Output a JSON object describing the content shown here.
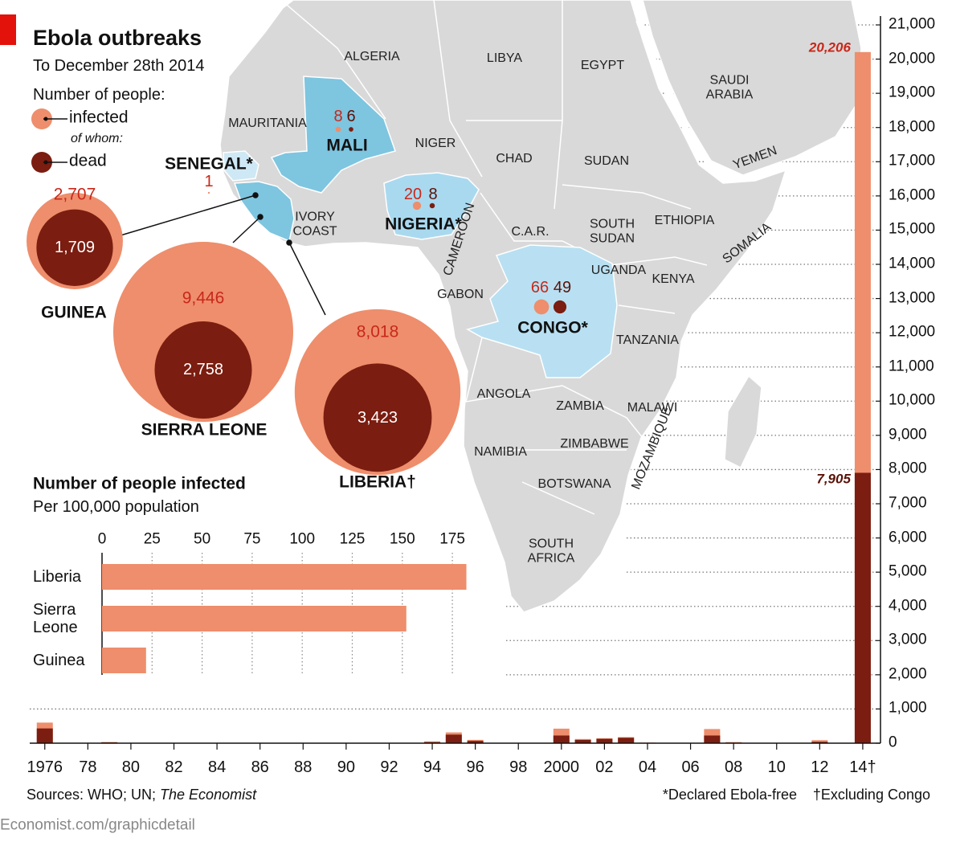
{
  "chart_data": [
    {
      "type": "bubble-map",
      "title": "Ebola outbreaks",
      "subtitle": "To December 28th 2014",
      "legend_title": "Number of people:",
      "legend_note": "of whom:",
      "map_labels": [
        "ALGERIA",
        "LIBYA",
        "EGYPT",
        "SAUDI ARABIA",
        "MAURITANIA",
        "NIGER",
        "CHAD",
        "SUDAN",
        "YEMEN",
        "IVORY COAST",
        "C.A.R.",
        "SOUTH SUDAN",
        "ETHIOPIA",
        "SOMALIA",
        "CAMEROON",
        "UGANDA",
        "KENYA",
        "GABON",
        "TANZANIA",
        "ANGOLA",
        "ZAMBIA",
        "MALAWI",
        "MOZAMBIQUE",
        "ZIMBABWE",
        "NAMIBIA",
        "BOTSWANA",
        "SOUTH AFRICA"
      ],
      "categories": [
        "GUINEA",
        "SIERRA LEONE",
        "LIBERIA†",
        "MALI",
        "SENEGAL*",
        "NIGERIA*",
        "CONGO*"
      ],
      "series": [
        {
          "name": "infected",
          "color": "#ee8e6c",
          "values": [
            2707,
            9446,
            8018,
            8,
            1,
            20,
            66
          ],
          "value_labels": [
            "2,707",
            "9,446",
            "8,018",
            null,
            null,
            null,
            null
          ]
        },
        {
          "name": "dead",
          "color": "#7b1d10",
          "values": [
            1709,
            2758,
            3423,
            6,
            null,
            8,
            49
          ],
          "value_labels": [
            "1,709",
            "2,758",
            "3,423",
            null,
            null,
            null,
            null
          ]
        }
      ]
    },
    {
      "type": "hbar",
      "title": "Number of people infected",
      "subtitle": "Per 100,000 population",
      "categories": [
        "Liberia",
        "Sierra Leone",
        "Guinea"
      ],
      "values": [
        182,
        152,
        22
      ],
      "color": "#ee8e6c",
      "xlim": [
        0,
        185
      ],
      "xticks": [
        0,
        25,
        50,
        75,
        100,
        125,
        150,
        175
      ],
      "grid": true
    },
    {
      "type": "bar",
      "x": [
        1976,
        1977,
        1979,
        1994,
        1995,
        1996,
        2000,
        2001,
        2002,
        2003,
        2004,
        2005,
        2007,
        2008,
        2012,
        2014
      ],
      "series": [
        {
          "color": "#ee8e6c",
          "values": [
            602,
            1,
            34,
            52,
            315,
            97,
            425,
            122,
            143,
            178,
            17,
            12,
            413,
            32,
            88,
            20206
          ],
          "value_labels": [
            null,
            null,
            null,
            null,
            null,
            null,
            null,
            null,
            null,
            null,
            null,
            null,
            null,
            null,
            null,
            "20,206"
          ]
        },
        {
          "color": "#7b1d10",
          "values": [
            431,
            1,
            22,
            31,
            250,
            66,
            224,
            96,
            128,
            157,
            7,
            10,
            224,
            15,
            39,
            7905
          ],
          "value_labels": [
            null,
            null,
            null,
            null,
            null,
            null,
            null,
            null,
            null,
            null,
            null,
            null,
            null,
            null,
            null,
            "7,905"
          ]
        }
      ],
      "xlim": [
        1975.3,
        2014.6
      ],
      "xticks": [
        1976,
        {
          "value": 1978,
          "label": "78"
        },
        {
          "value": 1980,
          "label": "80"
        },
        {
          "value": 1982,
          "label": "82"
        },
        {
          "value": 1984,
          "label": "84"
        },
        {
          "value": 1986,
          "label": "86"
        },
        {
          "value": 1988,
          "label": "88"
        },
        {
          "value": 1990,
          "label": "90"
        },
        {
          "value": 1992,
          "label": "92"
        },
        {
          "value": 1994,
          "label": "94"
        },
        {
          "value": 1996,
          "label": "96"
        },
        {
          "value": 1998,
          "label": "98"
        },
        2000,
        {
          "value": 2002,
          "label": "02"
        },
        {
          "value": 2004,
          "label": "04"
        },
        {
          "value": 2006,
          "label": "06"
        },
        {
          "value": 2008,
          "label": "08"
        },
        {
          "value": 2010,
          "label": "10"
        },
        {
          "value": 2012,
          "label": "12"
        },
        {
          "value": 2014,
          "label": "14†"
        }
      ],
      "ylim": [
        0,
        21000
      ],
      "yticks": [
        0,
        {
          "value": 1000,
          "label": "1,000"
        },
        {
          "value": 2000,
          "label": "2,000"
        },
        {
          "value": 3000,
          "label": "3,000"
        },
        {
          "value": 4000,
          "label": "4,000"
        },
        {
          "value": 5000,
          "label": "5,000"
        },
        {
          "value": 6000,
          "label": "6,000"
        },
        {
          "value": 7000,
          "label": "7,000"
        },
        {
          "value": 8000,
          "label": "8,000"
        },
        {
          "value": 9000,
          "label": "9,000"
        },
        {
          "value": 10000,
          "label": "10,000"
        },
        {
          "value": 11000,
          "label": "11,000"
        },
        {
          "value": 12000,
          "label": "12,000"
        },
        {
          "value": 13000,
          "label": "13,000"
        },
        {
          "value": 14000,
          "label": "14,000"
        },
        {
          "value": 15000,
          "label": "15,000"
        },
        {
          "value": 16000,
          "label": "16,000"
        },
        {
          "value": 17000,
          "label": "17,000"
        },
        {
          "value": 18000,
          "label": "18,000"
        },
        {
          "value": 19000,
          "label": "19,000"
        },
        {
          "value": 20000,
          "label": "20,000"
        },
        {
          "value": 21000,
          "label": "21,000"
        }
      ],
      "grid": true
    }
  ],
  "footer": {
    "sources": "Sources: WHO; UN;",
    "sources_italic": "The Economist",
    "notes": [
      "*Declared Ebola-free",
      "†Excluding Congo"
    ],
    "credit": "Economist.com/graphicdetail"
  }
}
